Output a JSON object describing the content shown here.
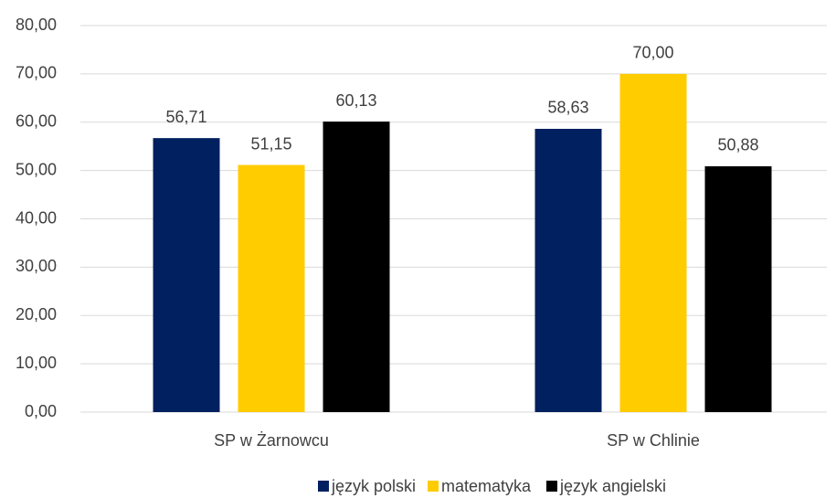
{
  "chart_data": {
    "type": "bar",
    "categories": [
      "SP w Żarnowcu",
      "SP w Chlinie"
    ],
    "series": [
      {
        "name": "język polski",
        "color": "#002060",
        "values": [
          56.71,
          58.63
        ],
        "value_labels": [
          "56,71",
          "58,63"
        ]
      },
      {
        "name": "matematyka",
        "color": "#ffcc00",
        "values": [
          51.15,
          70.0
        ],
        "value_labels": [
          "51,15",
          "70,00"
        ]
      },
      {
        "name": "język angielski",
        "color": "#000000",
        "values": [
          60.13,
          50.88
        ],
        "value_labels": [
          "60,13",
          "50,88"
        ]
      }
    ],
    "ylim": [
      0,
      80
    ],
    "yticks": [
      {
        "value": 0,
        "label": "0,00"
      },
      {
        "value": 10,
        "label": "10,00"
      },
      {
        "value": 20,
        "label": "20,00"
      },
      {
        "value": 30,
        "label": "30,00"
      },
      {
        "value": 40,
        "label": "40,00"
      },
      {
        "value": 50,
        "label": "50,00"
      },
      {
        "value": 60,
        "label": "60,00"
      },
      {
        "value": 70,
        "label": "70,00"
      },
      {
        "value": 80,
        "label": "80,00"
      }
    ],
    "grid": true,
    "legend": "bottom"
  }
}
